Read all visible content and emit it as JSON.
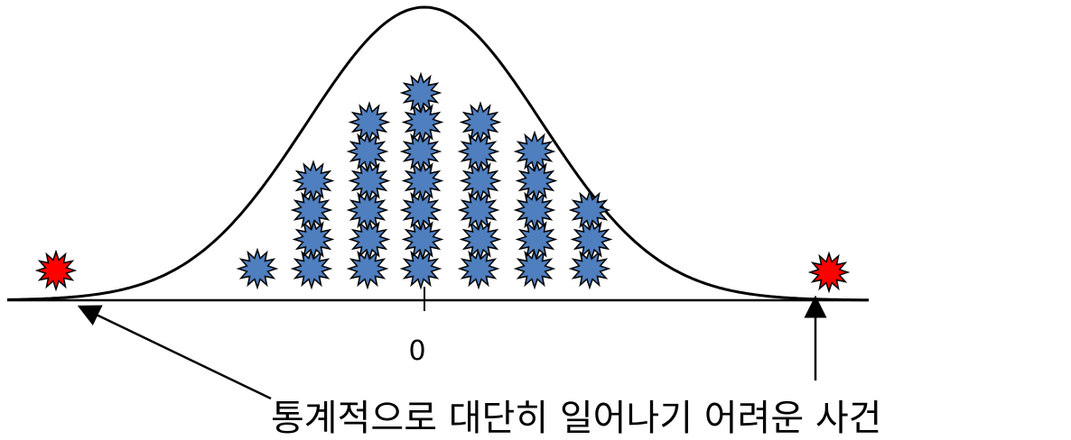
{
  "diagram": {
    "center_label": "0",
    "caption": "통계적으로 대단히 일어나기 어려운 사건",
    "colors": {
      "common_star": "#4f7fbf",
      "rare_star": "#ff0000",
      "star_outline": "#000000",
      "curve": "#000000"
    },
    "icons": {
      "common_event": "burst-star-icon",
      "rare_event": "red-burst-star-icon",
      "pointer": "arrow-icon"
    },
    "columns": [
      {
        "stars": 1
      },
      {
        "stars": 4
      },
      {
        "stars": 6
      },
      {
        "stars": 7
      },
      {
        "stars": 6
      },
      {
        "stars": 5
      },
      {
        "stars": 3
      }
    ],
    "rare_events": 2
  }
}
